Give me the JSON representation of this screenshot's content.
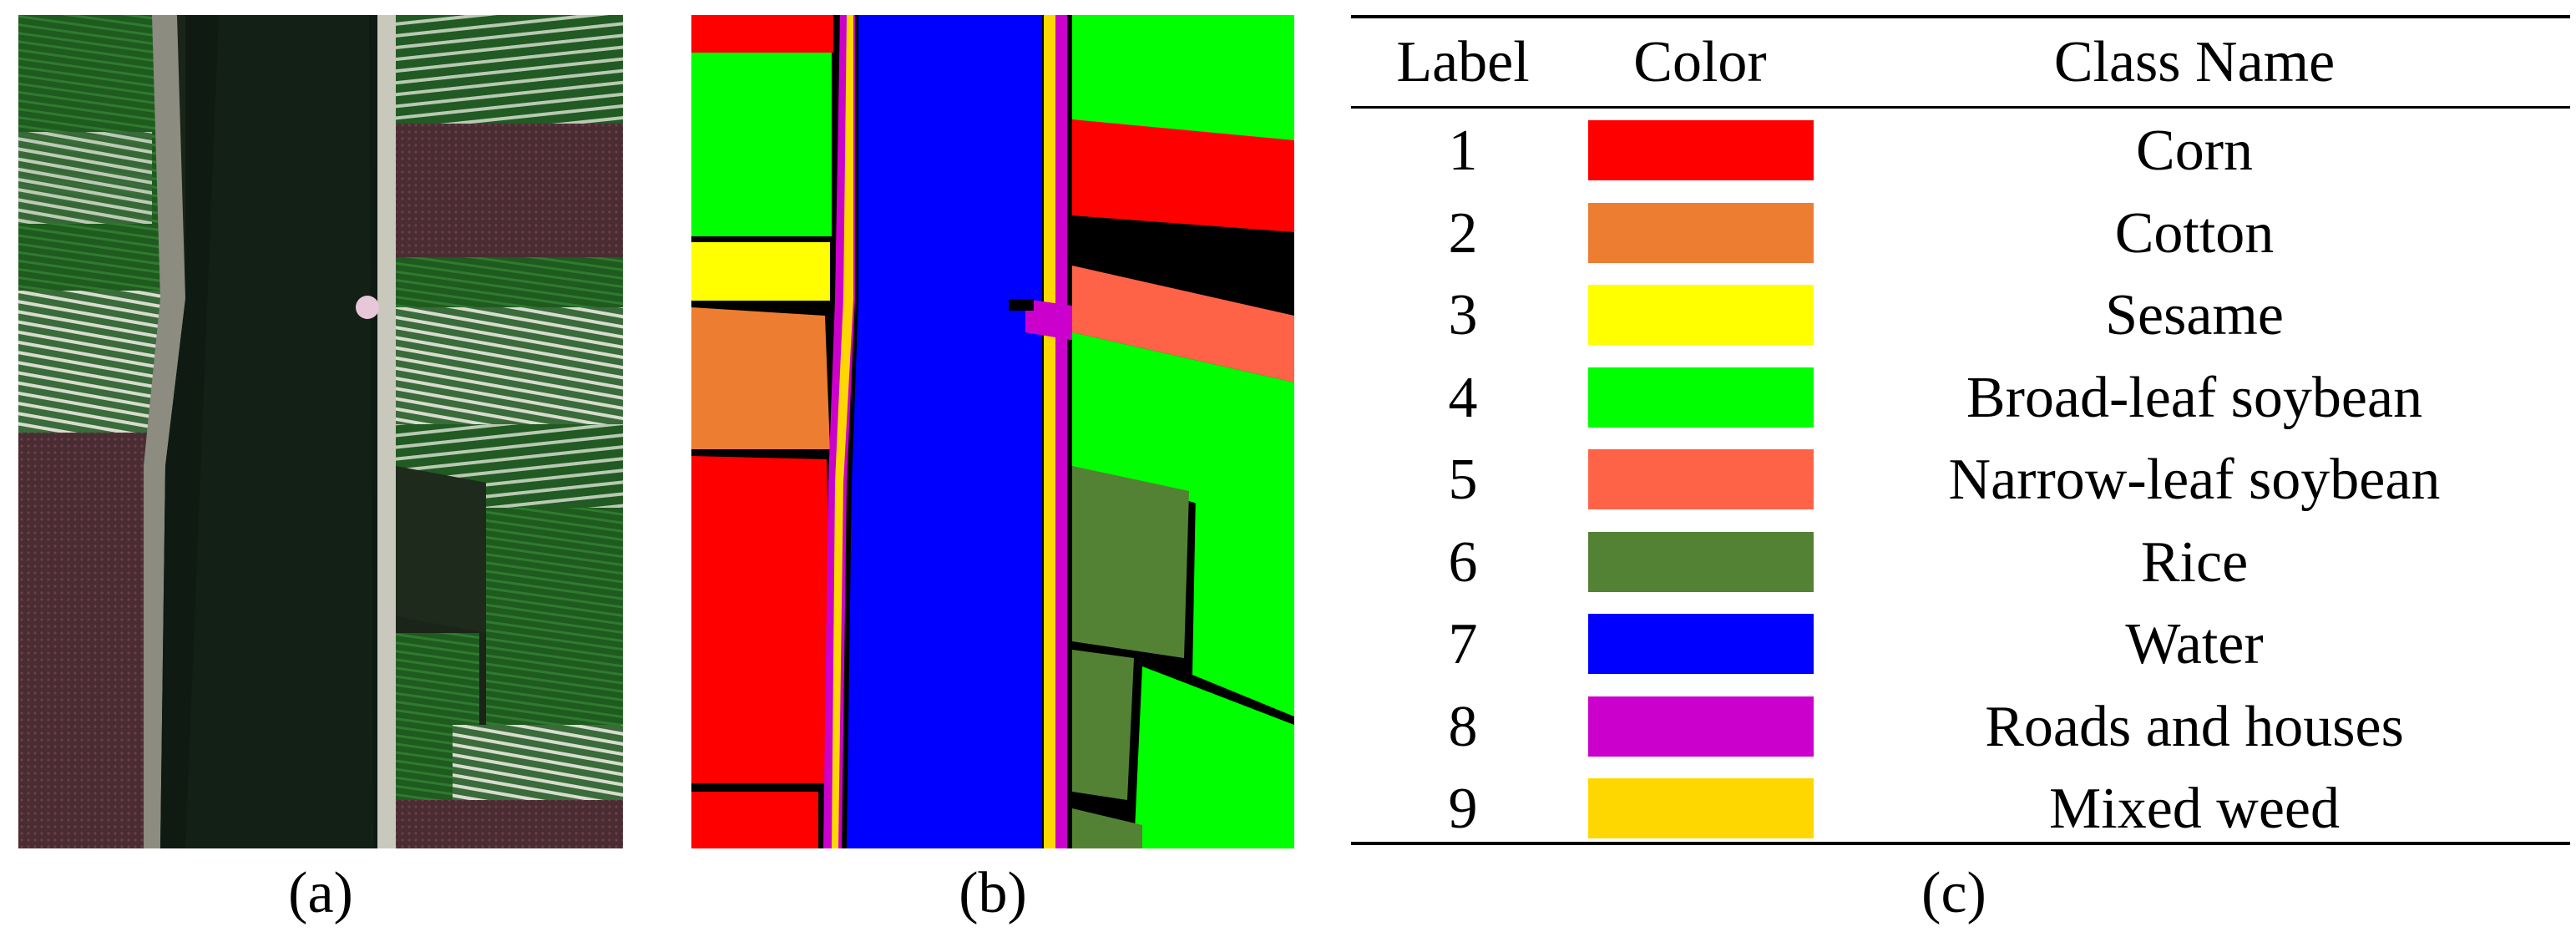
{
  "captions": {
    "a": "(a)",
    "b": "(b)",
    "c": "(c)"
  },
  "legend": {
    "headers": {
      "label": "Label",
      "color": "Color",
      "class_name": "Class Name"
    },
    "rows": [
      {
        "label": "1",
        "color": "#ff0000",
        "class_name": "Corn"
      },
      {
        "label": "2",
        "color": "#ed7d31",
        "class_name": "Cotton"
      },
      {
        "label": "3",
        "color": "#ffff00",
        "class_name": "Sesame"
      },
      {
        "label": "4",
        "color": "#00ff00",
        "class_name": "Broad-leaf soybean"
      },
      {
        "label": "5",
        "color": "#ff6347",
        "class_name": "Narrow-leaf soybean"
      },
      {
        "label": "6",
        "color": "#548235",
        "class_name": "Rice"
      },
      {
        "label": "7",
        "color": "#0000ff",
        "class_name": "Water"
      },
      {
        "label": "8",
        "color": "#cc00cc",
        "class_name": "Roads and houses"
      },
      {
        "label": "9",
        "color": "#ffd700",
        "class_name": "Mixed weed"
      }
    ]
  },
  "images": {
    "a": {
      "description_icon": "aerial-photo-icon"
    },
    "b": {
      "description_icon": "classification-map-icon"
    }
  }
}
